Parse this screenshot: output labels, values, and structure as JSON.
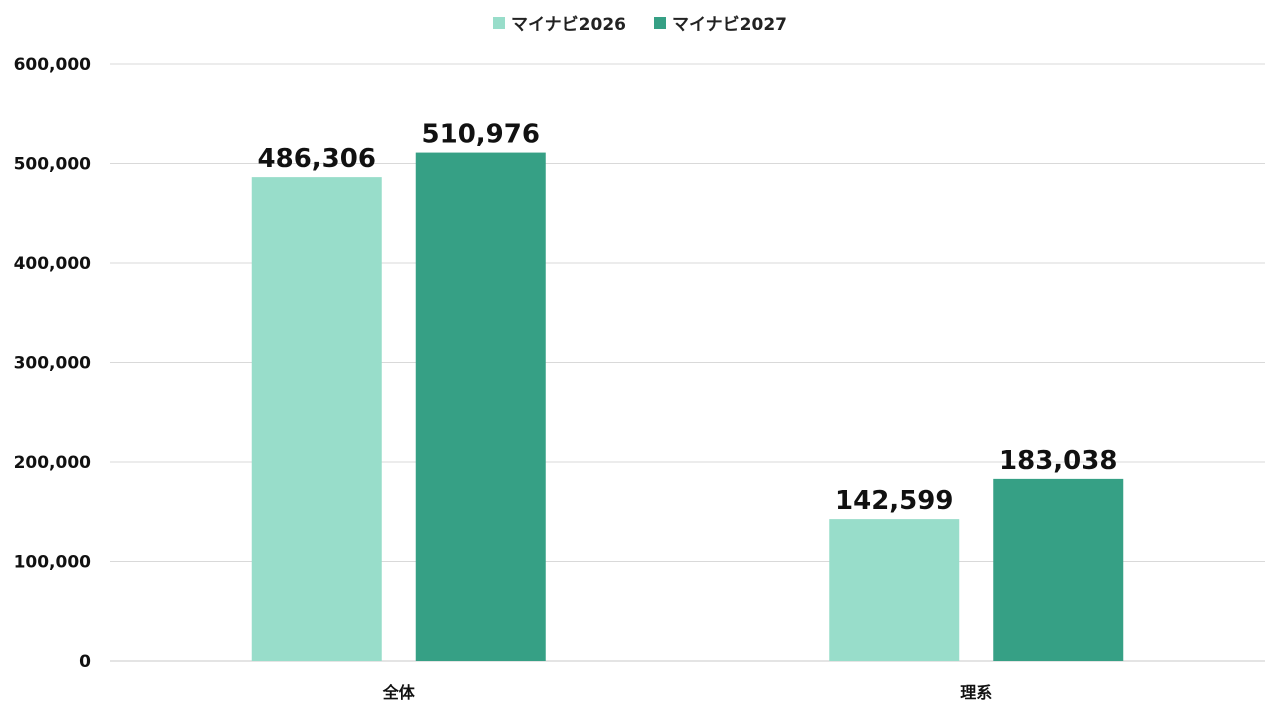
{
  "chart_data": {
    "type": "bar",
    "title": "",
    "xlabel": "",
    "ylabel": "",
    "categories": [
      "全体",
      "理系"
    ],
    "series": [
      {
        "name": "マイナビ2026",
        "color": "#98DDCA",
        "values": [
          486306,
          142599
        ],
        "labels": [
          "486,306",
          "142,599"
        ]
      },
      {
        "name": "マイナビ2027",
        "color": "#36A085",
        "values": [
          510976,
          183038
        ],
        "labels": [
          "510,976",
          "183,038"
        ]
      }
    ],
    "ylim": [
      0,
      600000
    ],
    "yticks": [
      0,
      100000,
      200000,
      300000,
      400000,
      500000,
      600000
    ],
    "ytick_labels": [
      "0",
      "100,000",
      "200,000",
      "300,000",
      "400,000",
      "500,000",
      "600,000"
    ],
    "grid": true,
    "legend_position": "top-center"
  }
}
